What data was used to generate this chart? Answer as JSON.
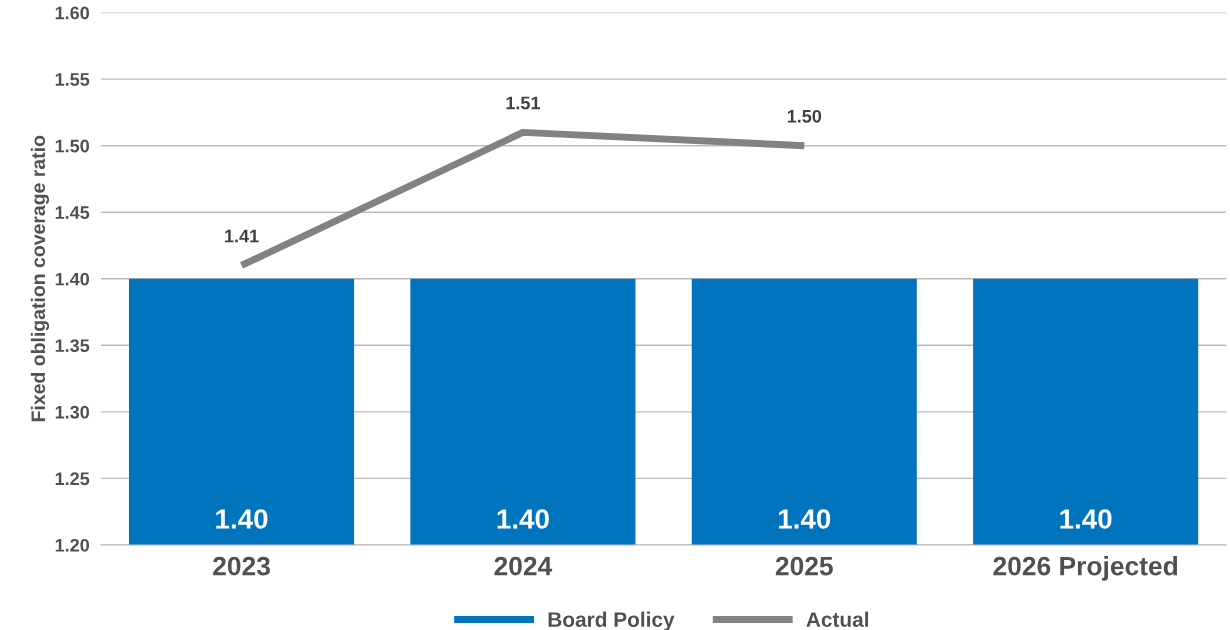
{
  "chart_data": {
    "type": "bar",
    "ylabel": "Fixed obligation coverage ratio",
    "categories": [
      "2023",
      "2024",
      "2025",
      "2026 Projected"
    ],
    "series": [
      {
        "name": "Board Policy",
        "color": "#0075be",
        "values": [
          1.4,
          1.4,
          1.4,
          1.4
        ],
        "value_labels": [
          "1.40",
          "1.40",
          "1.40",
          "1.40"
        ]
      },
      {
        "name": "Actual",
        "type": "line",
        "color": "#808285",
        "values": [
          1.41,
          1.51,
          1.5,
          null
        ],
        "value_labels": [
          "1.41",
          "1.51",
          "1.50",
          null
        ]
      }
    ],
    "ylim": [
      1.2,
      1.6
    ],
    "yticks": [
      {
        "value": 1.2,
        "label": "1.20"
      },
      {
        "value": 1.25,
        "label": "1.25"
      },
      {
        "value": 1.3,
        "label": "1.30"
      },
      {
        "value": 1.35,
        "label": "1.35"
      },
      {
        "value": 1.4,
        "label": "1.40"
      },
      {
        "value": 1.45,
        "label": "1.45"
      },
      {
        "value": 1.5,
        "label": "1.50"
      },
      {
        "value": 1.55,
        "label": "1.55"
      },
      {
        "value": 1.6,
        "label": "1.60"
      }
    ],
    "grid": "y",
    "legend": "bottom",
    "marker": "none",
    "line_style": "solid"
  }
}
